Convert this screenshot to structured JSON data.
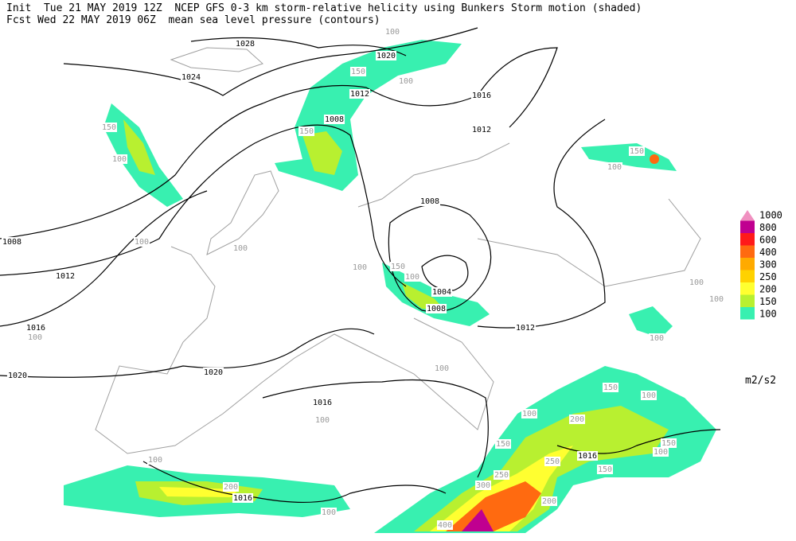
{
  "header": {
    "line1": "Init  Tue 21 MAY 2019 12Z  NCEP GFS 0-3 km storm-relative helicity using Bunkers Storm motion (shaded)",
    "line2": "Fcst Wed 22 MAY 2019 06Z  mean sea level pressure (contours)"
  },
  "legend": {
    "unit": "m2/s2",
    "levels": [
      {
        "value": 1000,
        "color": "#f090c0"
      },
      {
        "value": 800,
        "color": "#c00090"
      },
      {
        "value": 600,
        "color": "#ff1a1a"
      },
      {
        "value": 400,
        "color": "#ff6a10"
      },
      {
        "value": 300,
        "color": "#ffaa00"
      },
      {
        "value": 250,
        "color": "#ffd200"
      },
      {
        "value": 200,
        "color": "#ffff30"
      },
      {
        "value": 150,
        "color": "#b8f030"
      },
      {
        "value": 100,
        "color": "#38f0b0"
      }
    ]
  },
  "contour_labels": [
    1028,
    1024,
    1020,
    1012,
    1008,
    1016,
    1012,
    1008,
    1004,
    1008,
    1012,
    1008,
    1012,
    1016,
    1020,
    1020,
    1016,
    1016,
    1016
  ],
  "shade_labels": [
    100,
    150,
    100,
    150,
    150,
    100,
    100,
    100,
    100,
    150,
    100,
    100,
    150,
    100,
    100,
    100,
    100,
    100,
    100,
    200,
    100,
    100,
    150,
    100,
    200,
    100,
    150,
    250,
    300,
    250,
    200,
    400,
    150,
    100,
    150
  ]
}
